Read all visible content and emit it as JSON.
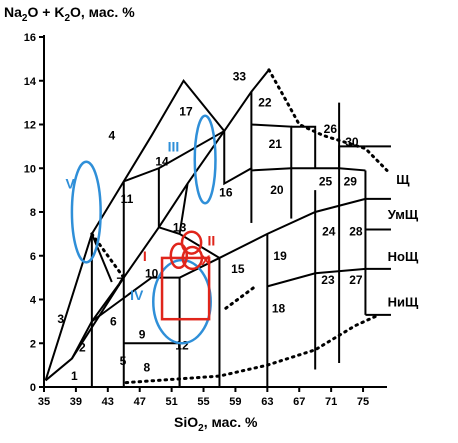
{
  "chart_data": {
    "type": "classification-diagram",
    "ylabel": {
      "base": "Na",
      "s1": "2",
      "mid": "O + K",
      "s2": "2",
      "tail": "O, мас. %"
    },
    "xlabel": {
      "base": "SiO",
      "s1": "2",
      "tail": ", мас. %"
    },
    "xlim": [
      35,
      77
    ],
    "ylim": [
      0,
      16
    ],
    "x_ticks": [
      35,
      39,
      43,
      47,
      51,
      55,
      59,
      63,
      67,
      71,
      75
    ],
    "y_ticks": [
      0,
      2,
      4,
      6,
      8,
      10,
      12,
      14,
      16
    ],
    "fields": [
      {
        "label": "1",
        "x": 38.8,
        "y": 0.5
      },
      {
        "label": "2",
        "x": 39.8,
        "y": 1.8
      },
      {
        "label": "3",
        "x": 37.1,
        "y": 3.1
      },
      {
        "label": "4",
        "x": 43.5,
        "y": 11.5
      },
      {
        "label": "5",
        "x": 44.9,
        "y": 1.2
      },
      {
        "label": "6",
        "x": 43.7,
        "y": 3.0
      },
      {
        "label": "7",
        "x": 44.5,
        "y": 4.8
      },
      {
        "label": "8",
        "x": 47.9,
        "y": 0.9
      },
      {
        "label": "9",
        "x": 47.3,
        "y": 2.4
      },
      {
        "label": "10",
        "x": 48.5,
        "y": 5.2
      },
      {
        "label": "11",
        "x": 45.4,
        "y": 8.6
      },
      {
        "label": "12",
        "x": 52.3,
        "y": 1.9
      },
      {
        "label": "13",
        "x": 52.0,
        "y": 7.3
      },
      {
        "label": "14",
        "x": 49.8,
        "y": 10.3
      },
      {
        "label": "15",
        "x": 59.3,
        "y": 5.4
      },
      {
        "label": "16",
        "x": 57.8,
        "y": 8.9
      },
      {
        "label": "17",
        "x": 52.8,
        "y": 12.6
      },
      {
        "label": "18",
        "x": 64.4,
        "y": 3.6
      },
      {
        "label": "19",
        "x": 64.6,
        "y": 6.0
      },
      {
        "label": "20",
        "x": 64.2,
        "y": 9.0
      },
      {
        "label": "21",
        "x": 64.0,
        "y": 11.1
      },
      {
        "label": "22",
        "x": 62.7,
        "y": 13.0
      },
      {
        "label": "23",
        "x": 70.6,
        "y": 4.9
      },
      {
        "label": "24",
        "x": 70.7,
        "y": 7.1
      },
      {
        "label": "25",
        "x": 70.3,
        "y": 9.4
      },
      {
        "label": "26",
        "x": 70.9,
        "y": 11.8
      },
      {
        "label": "27",
        "x": 74.1,
        "y": 4.9
      },
      {
        "label": "28",
        "x": 74.1,
        "y": 7.1
      },
      {
        "label": "29",
        "x": 73.4,
        "y": 9.4
      },
      {
        "label": "30",
        "x": 73.6,
        "y": 11.2
      },
      {
        "label": "33",
        "x": 59.5,
        "y": 14.2
      }
    ],
    "series_labels": [
      {
        "label": "Щ",
        "x": 80.0,
        "y": 9.5
      },
      {
        "label": "УмЩ",
        "x": 80.0,
        "y": 7.9
      },
      {
        "label": "НоЩ",
        "x": 80.0,
        "y": 6.0
      },
      {
        "label": "НиЩ",
        "x": 80.0,
        "y": 3.9
      }
    ],
    "blue_groups": [
      {
        "label": "III",
        "cx": 55.2,
        "cy": 10.4,
        "rx": 1.3,
        "ry": 2.0,
        "lx": 50.5,
        "ly": 11.0
      },
      {
        "label": "V",
        "cx": 40.3,
        "cy": 8.0,
        "rx": 1.8,
        "ry": 2.3,
        "lx": 37.7,
        "ly": 9.3
      },
      {
        "label": "IV",
        "cx": 52.3,
        "cy": 3.9,
        "rx": 3.6,
        "ry": 1.9,
        "lx": 45.8,
        "ly": 4.2
      }
    ],
    "red_groups": [
      {
        "label": "I",
        "lx": 47.4,
        "ly": 6.0
      },
      {
        "label": "II",
        "lx": 55.5,
        "ly": 6.7
      },
      {
        "label": "X",
        "lx": 54.7,
        "ly": 5.8
      }
    ],
    "red_ellipses": [
      {
        "cx": 51.9,
        "cy": 6.0,
        "rx": 1.0,
        "ry": 0.55
      },
      {
        "cx": 53.5,
        "cy": 6.6,
        "rx": 1.2,
        "ry": 0.5
      },
      {
        "cx": 53.6,
        "cy": 5.9,
        "rx": 1.2,
        "ry": 0.5
      }
    ],
    "red_rectangle": {
      "x0": 49.8,
      "x1": 55.7,
      "y0": 3.1,
      "y1": 5.9
    },
    "colors": {
      "blue": "#2f8fd8",
      "red": "#e0251b",
      "black": "#000000"
    }
  }
}
